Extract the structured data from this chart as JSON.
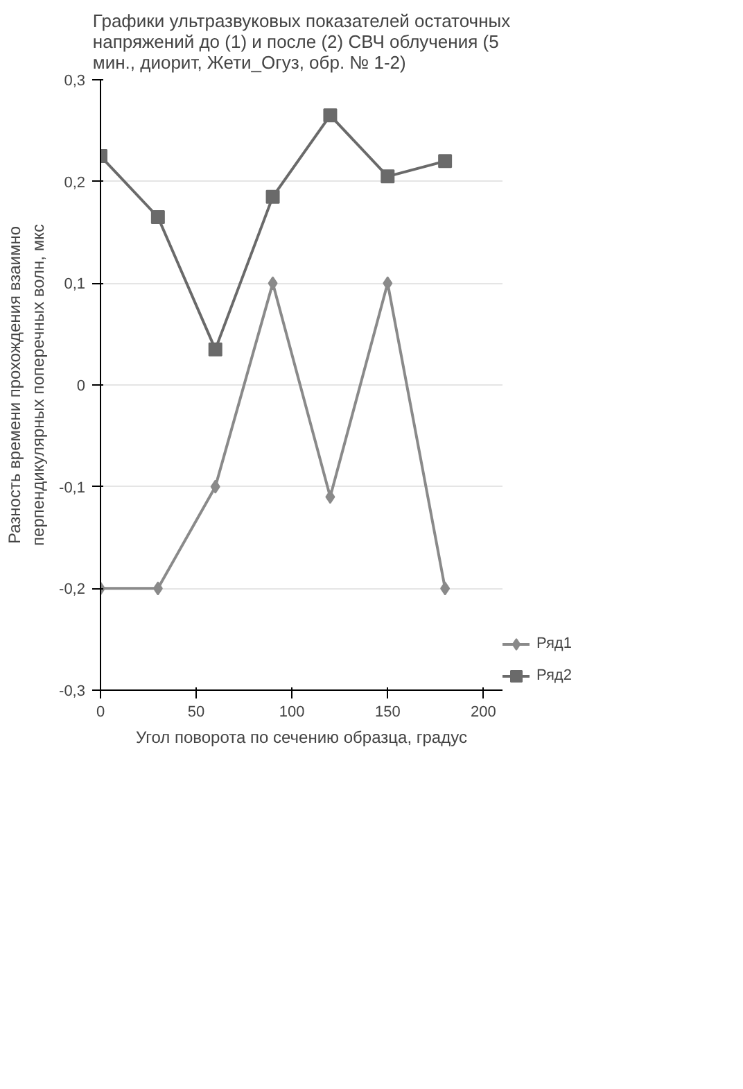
{
  "chart_data": {
    "type": "line",
    "title": "Графики ультразвуковых показателей остаточных напряжений до (1) и после (2) СВЧ облучения (5 мин., диорит, Жети_Огуз, обр. № 1-2)",
    "xlabel": "Угол поворота по сечению образца, градус",
    "ylabel": "Разность времени прохождения взаимно перпендикулярных поперечных волн, мкс",
    "x": [
      0,
      30,
      60,
      90,
      120,
      150,
      180
    ],
    "series": [
      {
        "name": "Ряд1",
        "color": "#8a8a8a",
        "marker": "diamond",
        "values": [
          -0.2,
          -0.2,
          -0.1,
          0.1,
          -0.11,
          0.1,
          -0.2
        ]
      },
      {
        "name": "Ряд2",
        "color": "#6a6a6a",
        "marker": "square",
        "values": [
          0.225,
          0.165,
          0.035,
          0.185,
          0.265,
          0.205,
          0.22
        ]
      }
    ],
    "xlim": [
      0,
      210
    ],
    "xticks": [
      0,
      50,
      100,
      150,
      200
    ],
    "ylim": [
      -0.3,
      0.3
    ],
    "yticks": [
      {
        "value": -0.3,
        "label": "-0,3"
      },
      {
        "value": -0.2,
        "label": "-0,2"
      },
      {
        "value": -0.1,
        "label": "-0,1"
      },
      0,
      {
        "value": 0.1,
        "label": "0,1"
      },
      {
        "value": 0.2,
        "label": "0,2"
      },
      {
        "value": 0.3,
        "label": "0,3"
      }
    ],
    "grid": "y",
    "legend": "right",
    "line_style": "solid"
  }
}
